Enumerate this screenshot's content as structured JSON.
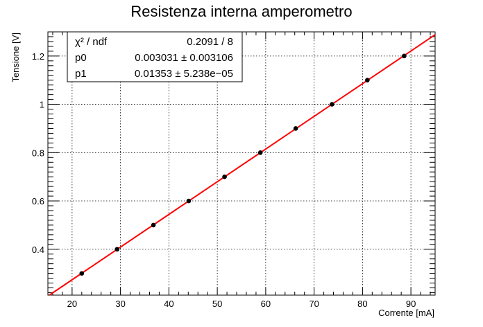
{
  "chart_data": {
    "type": "scatter",
    "title": "Resistenza interna amperometro",
    "xlabel": "Corrente [mA]",
    "ylabel": "Tensione [V]",
    "xlim": [
      15,
      95
    ],
    "ylim": [
      0.21,
      1.3
    ],
    "x_ticks": [
      20,
      30,
      40,
      50,
      60,
      70,
      80,
      90
    ],
    "y_ticks": [
      0.4,
      0.6,
      0.8,
      1,
      1.2
    ],
    "grid": true,
    "series": [
      {
        "x": [
          22.0,
          29.3,
          36.8,
          44.1,
          51.5,
          58.9,
          66.2,
          73.7,
          81.0,
          88.6
        ],
        "y": [
          0.3,
          0.4,
          0.5,
          0.6,
          0.7,
          0.8,
          0.9,
          1.0,
          1.1,
          1.2
        ],
        "color": "#000000"
      }
    ],
    "fit": {
      "p0": 0.003031,
      "p1": 0.01353,
      "color": "#ff0000"
    },
    "stats_box": {
      "position": "top-left",
      "rows": [
        {
          "name": "χ² / ndf",
          "value": "0.2091 / 8"
        },
        {
          "name": "p0",
          "value": "0.003031 ± 0.003106"
        },
        {
          "name": "p1",
          "value": "0.01353 ± 5.238e−05"
        }
      ]
    }
  }
}
